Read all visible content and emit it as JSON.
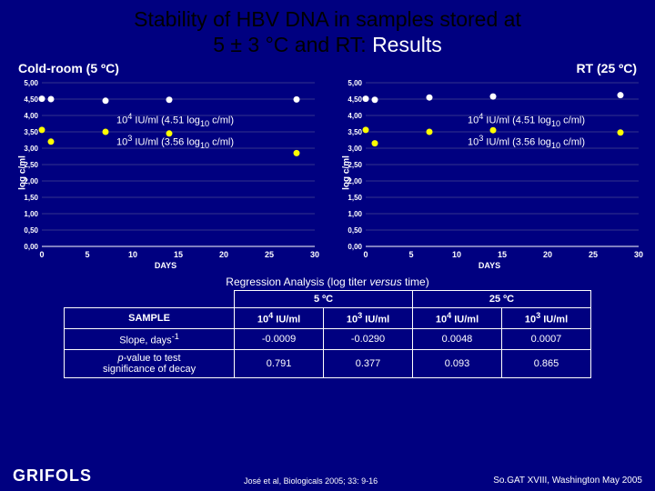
{
  "title_line1": "Stability of HBV DNA in samples stored at",
  "title_line2a": "5 ± 3 °C and RT: ",
  "title_line2b": "Results",
  "left_subtitle": "Cold-room (5 ºC)",
  "right_subtitle": "RT (25 ºC)",
  "chart": {
    "ylabel": "log c/ml",
    "xlabel": "DAYS",
    "ylim": [
      0,
      5.0
    ],
    "ytick_step": 0.5,
    "yticks": [
      "0,00",
      "0,50",
      "1,00",
      "1,50",
      "2,00",
      "2,50",
      "3,00",
      "3,50",
      "4,00",
      "4,50",
      "5,00"
    ],
    "xlim": [
      0,
      30
    ],
    "xtick_step": 5,
    "xticks": [
      "0",
      "5",
      "10",
      "15",
      "20",
      "25",
      "30"
    ],
    "grid_color": "#666699",
    "axis_color": "#ffffff",
    "text_color": "#ffffff",
    "background_color": "#000080",
    "marker_color_high": "#ffffff",
    "marker_color_low": "#ffff00",
    "marker_size": 3.5,
    "annot_high_html": "10<sup>4</sup> IU/ml (4.51 log<sub>10</sub> c/ml)",
    "annot_low_html": "10<sup>3</sup> IU/ml (3.56 log<sub>10</sub> c/ml)"
  },
  "left_chart": {
    "series_high": {
      "color": "#ffffff",
      "x": [
        0,
        1,
        7,
        14,
        28
      ],
      "y": [
        4.51,
        4.5,
        4.45,
        4.48,
        4.49
      ]
    },
    "series_low": {
      "color": "#ffff00",
      "x": [
        0,
        1,
        7,
        14,
        28
      ],
      "y": [
        3.56,
        3.2,
        3.5,
        3.45,
        2.85
      ]
    }
  },
  "right_chart": {
    "series_high": {
      "color": "#ffffff",
      "x": [
        0,
        1,
        7,
        14,
        28
      ],
      "y": [
        4.51,
        4.48,
        4.55,
        4.58,
        4.62
      ]
    },
    "series_low": {
      "color": "#ffff00",
      "x": [
        0,
        1,
        7,
        14,
        28
      ],
      "y": [
        3.56,
        3.15,
        3.5,
        3.55,
        3.48
      ]
    }
  },
  "table": {
    "title_html": "Regression Analysis (log titer <i>versus</i> time)",
    "group1": "5 ºC",
    "group2": "25 ºC",
    "col_sample": "SAMPLE",
    "col_a_html": "10<sup>4</sup> IU/ml",
    "col_b_html": "10<sup>3</sup> IU/ml",
    "col_c_html": "10<sup>4</sup> IU/ml",
    "col_d_html": "10<sup>3</sup> IU/ml",
    "row1_label_html": "Slope, days<sup>-1</sup>",
    "row1": [
      "-0.0009",
      "-0.0290",
      "0.0048",
      "0.0007"
    ],
    "row2_label_html": "<i>p</i>-value to test<br>significance of decay",
    "row2": [
      "0.791",
      "0.377",
      "0.093",
      "0.865"
    ]
  },
  "footer": {
    "logo": "GRIFOLS",
    "citation": "José et al, Biologicals 2005; 33: 9-16",
    "venue": "So.GAT XVIII, Washington  May 2005"
  }
}
